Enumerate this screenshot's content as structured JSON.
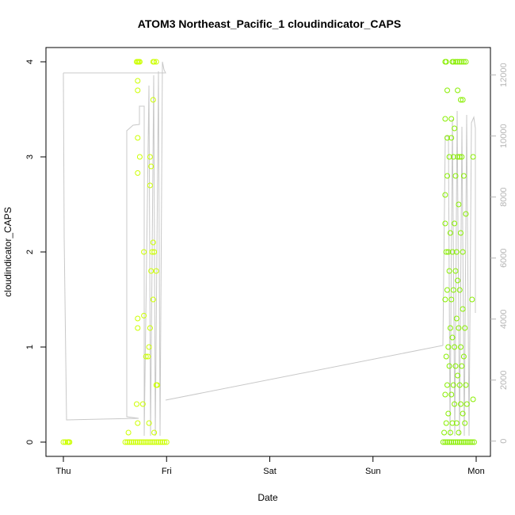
{
  "chart_data": {
    "type": "scatter",
    "title": "ATOM3 Northeast_Pacific_1 cloudindicator_CAPS",
    "xlabel": "Date",
    "ylabel": "cloudindicator_CAPS",
    "x_ticks": [
      "Thu",
      "Fri",
      "Sat",
      "Sun",
      "Mon"
    ],
    "x_range_days": [
      -0.1,
      4.15
    ],
    "ylim": [
      -0.15,
      4.15
    ],
    "y_ticks": [
      0,
      1,
      2,
      3,
      4
    ],
    "y2lim": [
      -500,
      12900
    ],
    "y2_ticks": [
      0,
      2000,
      4000,
      6000,
      8000,
      10000,
      12000
    ],
    "grid": false,
    "series": [
      {
        "color": "#ccff00",
        "points": [
          [
            0.0,
            0
          ],
          [
            0.02,
            0
          ],
          [
            0.04,
            0
          ],
          [
            0.05,
            0
          ],
          [
            0.06,
            0
          ],
          [
            0.6,
            0
          ],
          [
            0.62,
            0
          ],
          [
            0.64,
            0
          ],
          [
            0.66,
            0
          ],
          [
            0.68,
            0
          ],
          [
            0.7,
            0
          ],
          [
            0.72,
            0
          ],
          [
            0.74,
            0
          ],
          [
            0.76,
            0
          ],
          [
            0.78,
            0
          ],
          [
            0.8,
            0
          ],
          [
            0.82,
            0
          ],
          [
            0.84,
            0
          ],
          [
            0.86,
            0
          ],
          [
            0.88,
            0
          ],
          [
            0.9,
            0
          ],
          [
            0.92,
            0
          ],
          [
            0.94,
            0
          ],
          [
            0.96,
            0
          ],
          [
            0.98,
            0
          ],
          [
            1.0,
            0
          ],
          [
            0.63,
            0.1
          ],
          [
            0.71,
            0.4
          ],
          [
            0.72,
            0.2
          ],
          [
            0.77,
            0.4
          ],
          [
            0.83,
            0.2
          ],
          [
            0.88,
            0.1
          ],
          [
            0.9,
            0.6
          ],
          [
            0.91,
            0.6
          ],
          [
            0.72,
            1.2
          ],
          [
            0.72,
            1.3
          ],
          [
            0.78,
            1.33
          ],
          [
            0.8,
            0.9
          ],
          [
            0.82,
            0.9
          ],
          [
            0.83,
            1.0
          ],
          [
            0.84,
            1.2
          ],
          [
            0.87,
            1.5
          ],
          [
            0.78,
            2.0
          ],
          [
            0.85,
            1.8
          ],
          [
            0.86,
            2.0
          ],
          [
            0.87,
            2.1
          ],
          [
            0.88,
            2.0
          ],
          [
            0.9,
            1.8
          ],
          [
            0.72,
            2.83
          ],
          [
            0.74,
            3.0
          ],
          [
            0.84,
            2.7
          ],
          [
            0.84,
            3.0
          ],
          [
            0.85,
            2.9
          ],
          [
            0.87,
            3.6
          ],
          [
            0.72,
            3.7
          ],
          [
            0.72,
            3.8
          ],
          [
            0.72,
            3.2
          ],
          [
            0.71,
            4
          ],
          [
            0.72,
            4
          ],
          [
            0.73,
            4
          ],
          [
            0.74,
            4
          ],
          [
            0.87,
            4
          ],
          [
            0.88,
            4
          ],
          [
            0.9,
            4
          ]
        ]
      },
      {
        "color": "#88ee00",
        "points": [
          [
            3.68,
            0
          ],
          [
            3.7,
            0
          ],
          [
            3.72,
            0
          ],
          [
            3.74,
            0
          ],
          [
            3.76,
            0
          ],
          [
            3.78,
            0
          ],
          [
            3.8,
            0
          ],
          [
            3.82,
            0
          ],
          [
            3.84,
            0
          ],
          [
            3.86,
            0
          ],
          [
            3.88,
            0
          ],
          [
            3.9,
            0
          ],
          [
            3.92,
            0
          ],
          [
            3.94,
            0
          ],
          [
            3.96,
            0
          ],
          [
            3.98,
            0
          ],
          [
            3.69,
            0.1
          ],
          [
            3.71,
            0.2
          ],
          [
            3.73,
            0.3
          ],
          [
            3.75,
            0.1
          ],
          [
            3.77,
            0.2
          ],
          [
            3.79,
            0.4
          ],
          [
            3.81,
            0.2
          ],
          [
            3.83,
            0.1
          ],
          [
            3.85,
            0.4
          ],
          [
            3.87,
            0.3
          ],
          [
            3.89,
            0.2
          ],
          [
            3.91,
            0.4
          ],
          [
            3.7,
            0.5
          ],
          [
            3.72,
            0.6
          ],
          [
            3.74,
            0.8
          ],
          [
            3.76,
            0.5
          ],
          [
            3.78,
            0.6
          ],
          [
            3.8,
            0.8
          ],
          [
            3.82,
            0.7
          ],
          [
            3.84,
            0.6
          ],
          [
            3.86,
            0.8
          ],
          [
            3.88,
            0.9
          ],
          [
            3.9,
            0.6
          ],
          [
            3.71,
            0.9
          ],
          [
            3.73,
            1.0
          ],
          [
            3.75,
            1.2
          ],
          [
            3.77,
            1.1
          ],
          [
            3.79,
            1.0
          ],
          [
            3.81,
            1.3
          ],
          [
            3.83,
            1.2
          ],
          [
            3.85,
            1.0
          ],
          [
            3.87,
            1.4
          ],
          [
            3.89,
            1.2
          ],
          [
            3.7,
            1.5
          ],
          [
            3.72,
            1.6
          ],
          [
            3.74,
            1.8
          ],
          [
            3.76,
            1.5
          ],
          [
            3.78,
            1.6
          ],
          [
            3.8,
            1.8
          ],
          [
            3.82,
            1.7
          ],
          [
            3.84,
            1.6
          ],
          [
            3.96,
            1.5
          ],
          [
            3.71,
            2.0
          ],
          [
            3.73,
            2.0
          ],
          [
            3.75,
            2.2
          ],
          [
            3.77,
            2.0
          ],
          [
            3.79,
            2.3
          ],
          [
            3.81,
            2.0
          ],
          [
            3.83,
            2.5
          ],
          [
            3.85,
            2.2
          ],
          [
            3.87,
            2.0
          ],
          [
            3.7,
            2.3
          ],
          [
            3.7,
            2.6
          ],
          [
            3.72,
            2.8
          ],
          [
            3.74,
            3.0
          ],
          [
            3.76,
            3.2
          ],
          [
            3.78,
            3.0
          ],
          [
            3.8,
            2.8
          ],
          [
            3.82,
            3.0
          ],
          [
            3.84,
            3.0
          ],
          [
            3.86,
            3.0
          ],
          [
            3.88,
            2.8
          ],
          [
            3.9,
            2.4
          ],
          [
            3.97,
            3.0
          ],
          [
            3.7,
            3.4
          ],
          [
            3.72,
            3.2
          ],
          [
            3.76,
            3.4
          ],
          [
            3.79,
            3.3
          ],
          [
            3.82,
            3.7
          ],
          [
            3.85,
            3.6
          ],
          [
            3.87,
            3.6
          ],
          [
            3.7,
            4
          ],
          [
            3.71,
            4
          ],
          [
            3.77,
            4
          ],
          [
            3.78,
            4
          ],
          [
            3.8,
            4
          ],
          [
            3.82,
            4
          ],
          [
            3.84,
            4
          ],
          [
            3.86,
            4
          ],
          [
            3.88,
            4
          ],
          [
            3.9,
            4
          ],
          [
            3.97,
            0.45
          ],
          [
            3.72,
            3.7
          ]
        ]
      }
    ]
  }
}
